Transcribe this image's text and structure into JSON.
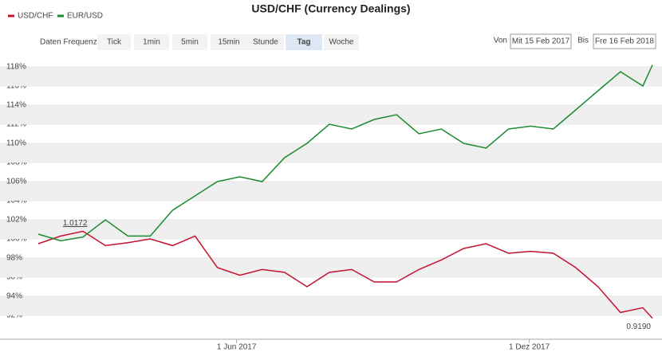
{
  "chart_data": {
    "type": "line",
    "title": "USD/CHF (Currency Dealings)",
    "x": [
      "2017-01-28",
      "2017-02-11",
      "2017-02-25",
      "2017-03-11",
      "2017-03-25",
      "2017-04-08",
      "2017-04-22",
      "2017-05-06",
      "2017-05-20",
      "2017-06-03",
      "2017-06-17",
      "2017-07-01",
      "2017-07-15",
      "2017-07-29",
      "2017-08-12",
      "2017-08-26",
      "2017-09-09",
      "2017-09-23",
      "2017-10-07",
      "2017-10-21",
      "2017-11-04",
      "2017-11-18",
      "2017-12-02",
      "2017-12-16",
      "2017-12-30",
      "2018-01-13",
      "2018-01-27",
      "2018-02-10",
      "2018-02-16"
    ],
    "series": [
      {
        "name": "USD/CHF",
        "color": "#c4122f",
        "values": [
          99.5,
          100.3,
          100.8,
          99.3,
          99.6,
          100,
          99.3,
          100.3,
          97,
          96.2,
          96.8,
          96.5,
          95,
          96.5,
          96.8,
          95.5,
          95.5,
          96.8,
          97.8,
          99,
          99.5,
          98.5,
          98.7,
          98.5,
          97,
          95,
          92.3,
          92.8,
          91.7
        ]
      },
      {
        "name": "EUR/USD",
        "color": "#1b8a30",
        "values": [
          100.5,
          99.8,
          100.2,
          102,
          100.3,
          100.3,
          103,
          104.5,
          106,
          106.5,
          106,
          108.5,
          110,
          112,
          111.5,
          112.5,
          113,
          111,
          111.5,
          110,
          109.5,
          111.5,
          111.8,
          111.5,
          113.5,
          115.5,
          117.5,
          116,
          118.2
        ]
      }
    ],
    "xlim": [
      "2017-01-28",
      "2018-02-16"
    ],
    "xticks": [
      {
        "value": "2017-06-01",
        "label": "1 Jun 2017"
      },
      {
        "value": "2017-12-01",
        "label": "1 Dez 2017"
      }
    ],
    "ylim": [
      89.5,
      119
    ],
    "yticks": [
      {
        "value": 92,
        "label": "92%"
      },
      {
        "value": 94,
        "label": "94%"
      },
      {
        "value": 96,
        "label": "96%"
      },
      {
        "value": 98,
        "label": "98%"
      },
      {
        "value": 100,
        "label": "100%"
      },
      {
        "value": 102,
        "label": "102%"
      },
      {
        "value": 104,
        "label": "104%"
      },
      {
        "value": 106,
        "label": "106%"
      },
      {
        "value": 108,
        "label": "108%"
      },
      {
        "value": 110,
        "label": "110%"
      },
      {
        "value": 112,
        "label": "112%"
      },
      {
        "value": 114,
        "label": "114%"
      },
      {
        "value": 116,
        "label": "116%"
      },
      {
        "value": 118,
        "label": "118%"
      }
    ],
    "grid": true,
    "annotations": [
      {
        "text": "1.0172",
        "x": "2017-02-25",
        "y": 100.8,
        "color": "#2a7ab0"
      },
      {
        "text": "0.9190",
        "x": "2018-02-16",
        "y": 91.7,
        "color": "#c4122f"
      }
    ]
  },
  "controls": {
    "frequency_label": "Daten Frequenz",
    "frequencies": [
      "Tick",
      "1min",
      "5min",
      "15min",
      "Stunde",
      "Tag",
      "Woche"
    ],
    "selected": "Tag",
    "from_label": "Von",
    "from": "Mit 15 Feb 2017",
    "to_label": "Bis",
    "to": "Fre 16 Feb 2018"
  }
}
